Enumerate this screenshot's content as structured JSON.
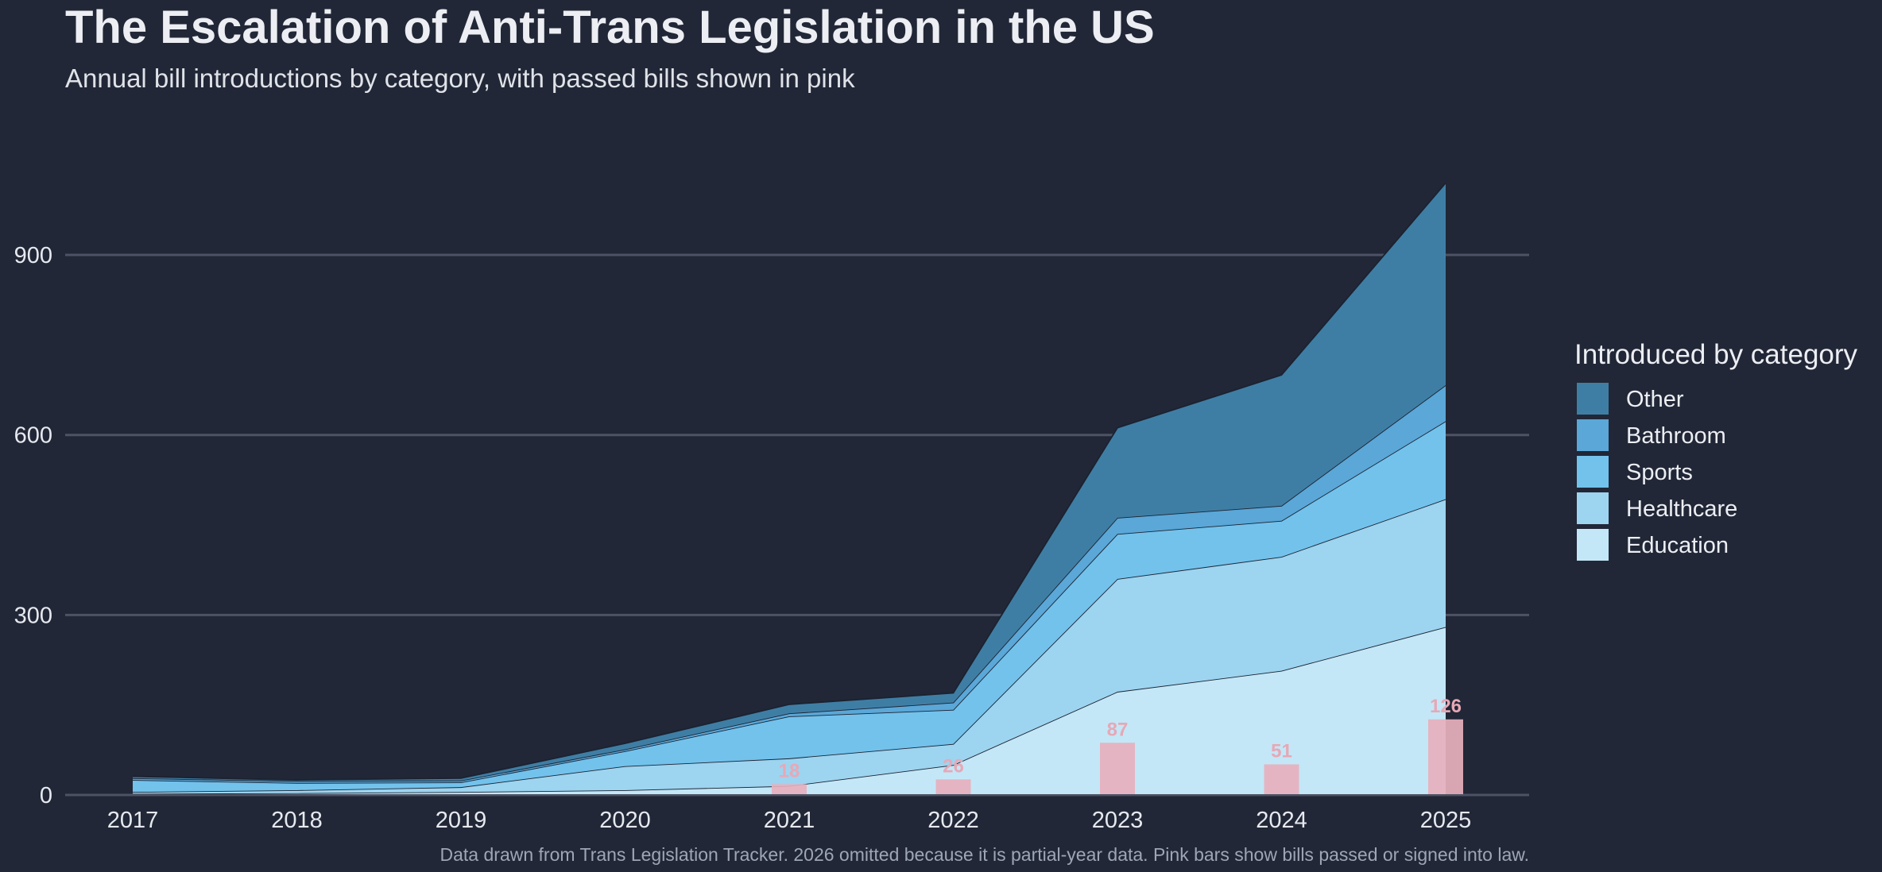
{
  "chart_data": {
    "type": "area",
    "title": "The Escalation of Anti-Trans Legislation in the US",
    "subtitle": "Annual bill introductions by category, with passed bills shown in pink",
    "caption": "Data drawn from Trans Legislation Tracker. 2026 omitted because it is partial-year data. Pink bars show bills passed or signed into law.",
    "legend_title": "Introduced by category",
    "legend_position": "right",
    "x": [
      "2017",
      "2018",
      "2019",
      "2020",
      "2021",
      "2022",
      "2023",
      "2024",
      "2025"
    ],
    "y_ticks": [
      0,
      300,
      600,
      900
    ],
    "ylim": [
      0,
      1020
    ],
    "grid": true,
    "series": [
      {
        "name": "Education",
        "color": "#c3e7f7",
        "values": [
          2,
          3,
          5,
          8,
          15,
          50,
          172,
          207,
          280
        ]
      },
      {
        "name": "Healthcare",
        "color": "#9dd4f0",
        "values": [
          3,
          5,
          8,
          40,
          46,
          35,
          188,
          190,
          213
        ]
      },
      {
        "name": "Sports",
        "color": "#72c2ec",
        "values": [
          20,
          12,
          8,
          25,
          70,
          57,
          75,
          60,
          130
        ]
      },
      {
        "name": "Bathroom",
        "color": "#5aa7d8",
        "values": [
          3,
          3,
          3,
          3,
          5,
          12,
          27,
          25,
          60
        ]
      },
      {
        "name": "Other",
        "color": "#3f7ea4",
        "values": [
          3,
          2,
          4,
          10,
          15,
          16,
          150,
          218,
          337
        ]
      }
    ],
    "legend_order": [
      "Other",
      "Bathroom",
      "Sports",
      "Healthcare",
      "Education"
    ],
    "passed": {
      "color": "#e8b0bd",
      "values": [
        null,
        null,
        null,
        null,
        18,
        26,
        87,
        51,
        126
      ],
      "labels": [
        "",
        "",
        "",
        "",
        "18",
        "26",
        "87",
        "51",
        "126"
      ]
    }
  }
}
